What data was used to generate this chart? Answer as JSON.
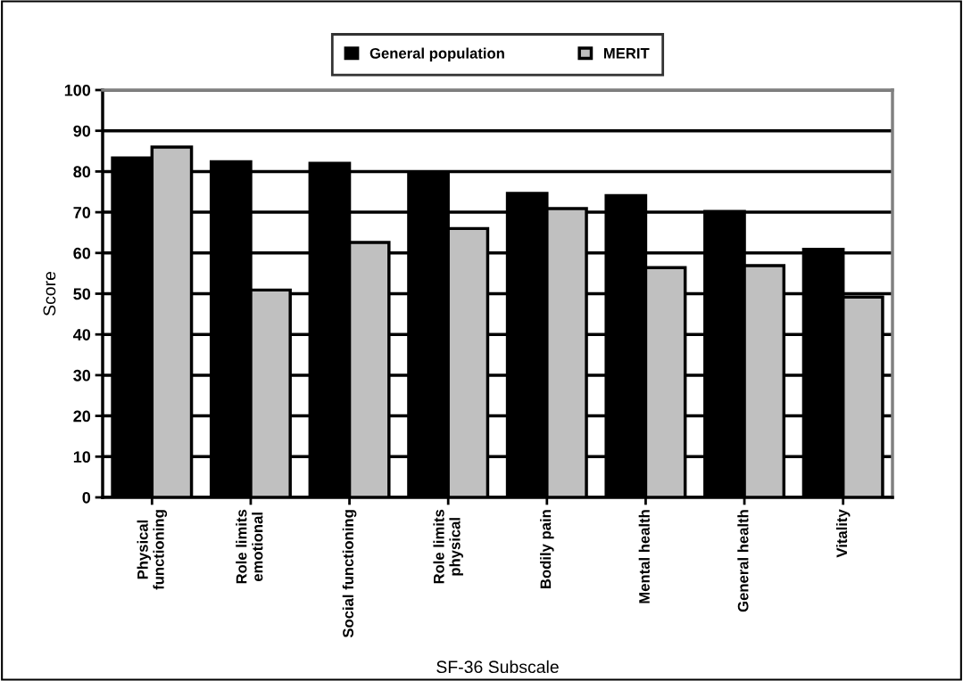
{
  "chart_data": {
    "type": "bar",
    "xlabel": "SF-36 Subscale",
    "ylabel": "Score",
    "categories": [
      "Physical\nfunctioning",
      "Role limits\nemotional",
      "Social functioning",
      "Role limits\nphysical",
      "Bodily pain",
      "Mental health",
      "General health",
      "Vitality"
    ],
    "series": [
      {
        "name": "General population",
        "color": "#000000",
        "values": [
          83.3,
          82.4,
          82.0,
          79.3,
          74.6,
          74.1,
          70.2,
          60.9
        ]
      },
      {
        "name": "MERIT",
        "color": "#c0c0c0",
        "values": [
          86.0,
          50.9,
          62.6,
          66.0,
          70.9,
          56.4,
          56.9,
          49.2
        ]
      }
    ],
    "ylim": [
      0,
      100
    ],
    "yticks": [
      0,
      10,
      20,
      30,
      40,
      50,
      60,
      70,
      80,
      90,
      100
    ],
    "grid": "y",
    "legend": "top"
  }
}
